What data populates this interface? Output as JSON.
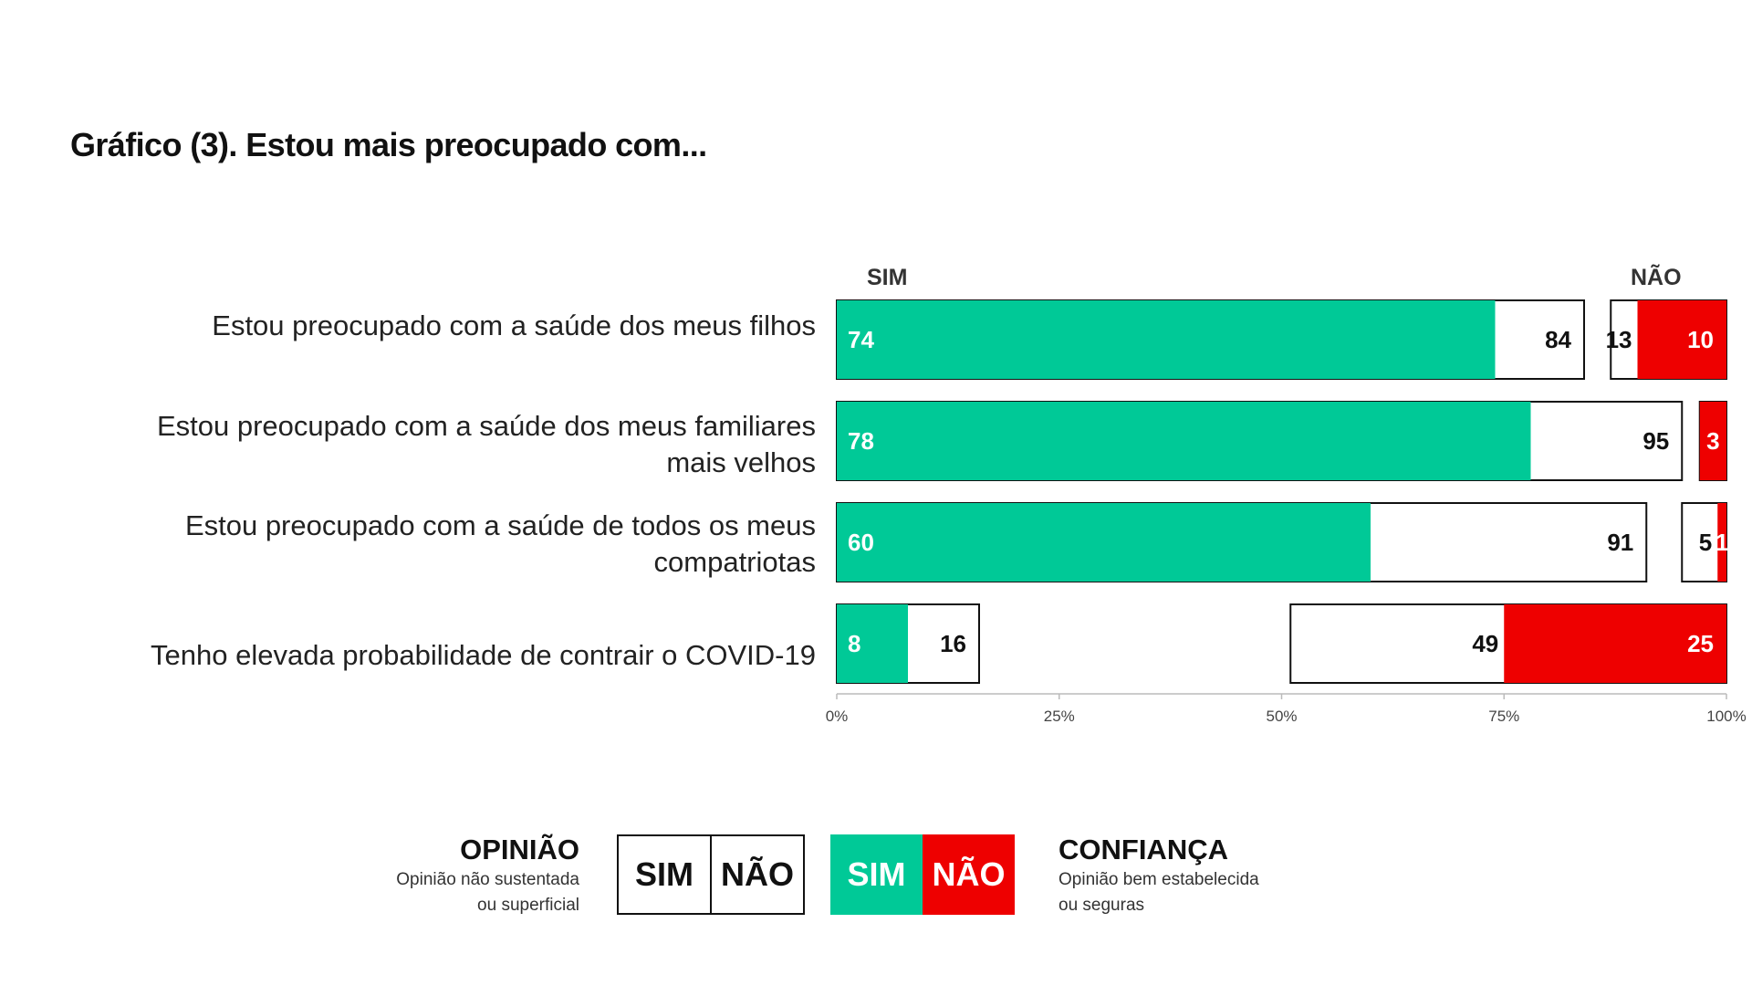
{
  "title": "Gráfico (3). Estou mais preocupado com...",
  "columns": {
    "sim": "SIM",
    "nao": "NÃO"
  },
  "colors": {
    "confianca_sim": "#00c997",
    "confianca_nao": "#ee0000",
    "opiniao_fill": "#ffffff",
    "outline": "#111111",
    "axis": "#bbbbbb"
  },
  "rows_labels": [
    [
      "Estou preocupado com a saúde dos meus filhos"
    ],
    [
      "Estou preocupado com a saúde dos meus familiares",
      "mais velhos"
    ],
    [
      "Estou preocupado com a saúde de todos os meus",
      "compatriotas"
    ],
    [
      "Tenho elevada probabilidade  de contrair o COVID-19"
    ]
  ],
  "chart_data": {
    "type": "bar",
    "stacked": true,
    "orientation": "horizontal",
    "xlim": [
      0,
      100
    ],
    "x_ticks": [
      "0%",
      "25%",
      "50%",
      "75%",
      "100%"
    ],
    "rows": [
      {
        "label": "Estou preocupado com a saúde dos meus filhos",
        "sim_confianca": 74,
        "sim_total": 84,
        "nao_total": 13,
        "nao_confianca": 10
      },
      {
        "label": "Estou preocupado com a saúde dos meus familiares mais velhos",
        "sim_confianca": 78,
        "sim_total": 95,
        "nao_total": 3,
        "nao_confianca": 3
      },
      {
        "label": "Estou preocupado com a saúde de todos os meus compatriotas",
        "sim_confianca": 60,
        "sim_total": 91,
        "nao_total": 5,
        "nao_confianca": 1
      },
      {
        "label": "Tenho elevada probabilidade  de contrair o COVID-19",
        "sim_confianca": 8,
        "sim_total": 16,
        "nao_total": 49,
        "nao_confianca": 25
      }
    ]
  },
  "legend": {
    "opiniao": {
      "title": "OPINIÃO",
      "desc1": "Opinião não sustentada",
      "desc2": "ou superficial",
      "sim": "SIM",
      "nao": "NÃO"
    },
    "confianca": {
      "title": "CONFIANÇA",
      "desc1": "Opinião bem estabelecida",
      "desc2": "ou seguras",
      "sim": "SIM",
      "nao": "NÃO"
    }
  }
}
